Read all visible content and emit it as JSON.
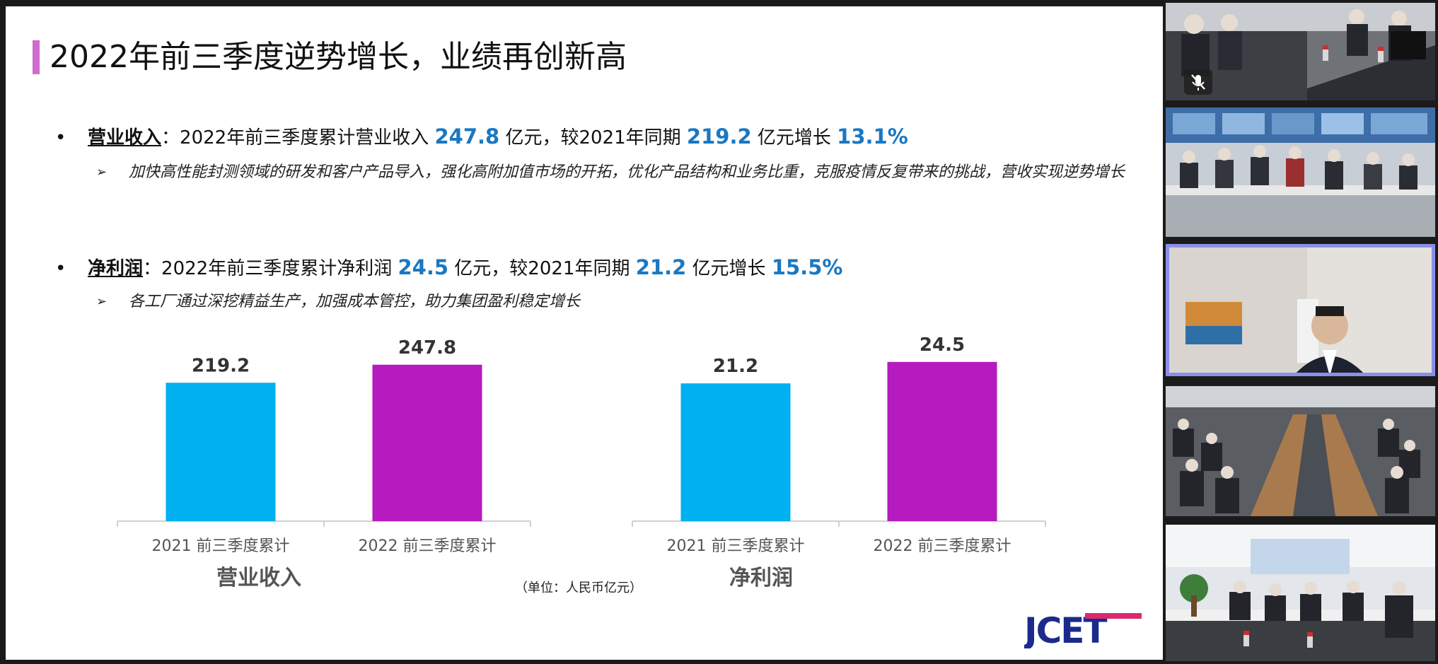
{
  "slide": {
    "title": "2022年前三季度逆势增长，业绩再创新高",
    "bullets": [
      {
        "dot": "•",
        "term": "营业收入",
        "colon": "：",
        "text1": "2022年前三季度累计营业收入 ",
        "v1": "247.8",
        "text2": " 亿元，较2021年同期 ",
        "v2": "219.2",
        "text3": " 亿元增长 ",
        "v3": "13.1%",
        "arrow": "➢",
        "sub": "加快高性能封测领域的研发和客户产品导入，强化高附加值市场的开拓，优化产品结构和业务比重，克服疫情反复带来的挑战，营收实现逆势增长"
      },
      {
        "dot": "•",
        "term": "净利润",
        "colon": "：",
        "text1": "2022年前三季度累计净利润 ",
        "v1": "24.5",
        "text2": " 亿元，较2021年同期 ",
        "v2": "21.2",
        "text3": " 亿元增长 ",
        "v3": "15.5%",
        "arrow": "➢",
        "sub": "各工厂通过深挖精益生产，加强成本管控，助力集团盈利稳定增长"
      }
    ],
    "unit_note": "（单位：人民币亿元）",
    "logo_text": "JCET"
  },
  "chart_data": [
    {
      "type": "bar",
      "title": "营业收入",
      "categories": [
        "2021 前三季度累计",
        "2022 前三季度累计"
      ],
      "values": [
        219.2,
        247.8
      ],
      "labels": [
        "219.2",
        "247.8"
      ],
      "ylim": [
        0,
        280
      ],
      "colors": [
        "#00b0f0",
        "#b51bbf"
      ],
      "grid": false
    },
    {
      "type": "bar",
      "title": "净利润",
      "categories": [
        "2021 前三季度累计",
        "2022 前三季度累计"
      ],
      "values": [
        21.2,
        24.5
      ],
      "labels": [
        "21.2",
        "24.5"
      ],
      "ylim": [
        0,
        27.2
      ],
      "colors": [
        "#00b0f0",
        "#b51bbf"
      ],
      "grid": false
    }
  ],
  "sidebar": {
    "tiles": [
      "video-tile-1",
      "video-tile-2",
      "video-tile-3",
      "video-tile-4",
      "video-tile-5"
    ],
    "active_tile": 2,
    "accent": "#8b8fe8"
  }
}
